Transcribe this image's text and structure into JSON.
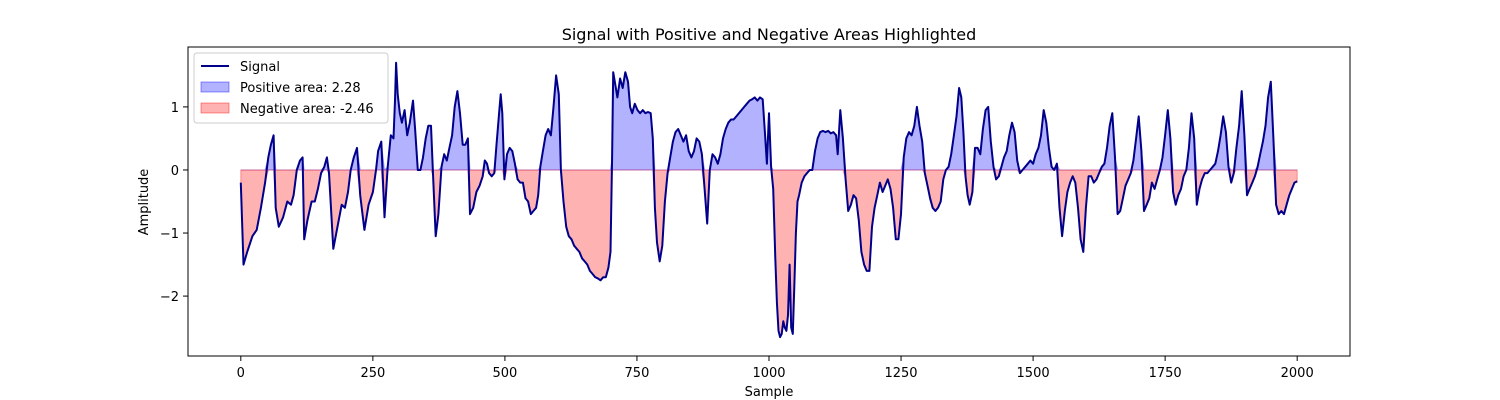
{
  "chart_data": {
    "type": "area",
    "title": "Signal with Positive and Negative Areas Highlighted",
    "xlabel": "Sample",
    "ylabel": "Amplitude",
    "xlim": [
      -100,
      2100
    ],
    "ylim": [
      -2.95,
      1.95
    ],
    "xticks": [
      0,
      250,
      500,
      750,
      1000,
      1250,
      1500,
      1750,
      2000
    ],
    "yticks": [
      -2,
      -1,
      0,
      1
    ],
    "ytick_labels": [
      "−2",
      "−1",
      "0",
      "1"
    ],
    "grid": false,
    "legend_position": "upper-left",
    "fill_x_range": [
      0,
      2000
    ],
    "series": [
      {
        "name": "Signal",
        "color": "#00008b",
        "legend": "Signal"
      },
      {
        "name": "Positive area",
        "color": "#0000ff",
        "legend": "Positive area: 2.28",
        "value": 2.28
      },
      {
        "name": "Negative area",
        "color": "#ff0000",
        "legend": "Negative area: -2.46",
        "value": -2.46
      }
    ],
    "signal": [
      [
        0,
        -0.2
      ],
      [
        5,
        -1.5
      ],
      [
        12,
        -1.3
      ],
      [
        22,
        -1.05
      ],
      [
        30,
        -0.95
      ],
      [
        38,
        -0.6
      ],
      [
        46,
        -0.2
      ],
      [
        52,
        0.2
      ],
      [
        57,
        0.4
      ],
      [
        62,
        0.55
      ],
      [
        66,
        -0.6
      ],
      [
        72,
        -0.9
      ],
      [
        80,
        -0.75
      ],
      [
        88,
        -0.5
      ],
      [
        95,
        -0.55
      ],
      [
        100,
        -0.4
      ],
      [
        106,
        0.0
      ],
      [
        112,
        0.15
      ],
      [
        117,
        0.2
      ],
      [
        120,
        -1.1
      ],
      [
        126,
        -0.8
      ],
      [
        134,
        -0.5
      ],
      [
        140,
        -0.5
      ],
      [
        146,
        -0.3
      ],
      [
        152,
        -0.05
      ],
      [
        158,
        0.05
      ],
      [
        163,
        0.2
      ],
      [
        167,
        -0.05
      ],
      [
        175,
        -1.25
      ],
      [
        183,
        -0.9
      ],
      [
        191,
        -0.55
      ],
      [
        197,
        -0.6
      ],
      [
        203,
        -0.35
      ],
      [
        208,
        0.0
      ],
      [
        214,
        0.2
      ],
      [
        220,
        0.35
      ],
      [
        226,
        -0.4
      ],
      [
        234,
        -0.95
      ],
      [
        242,
        -0.55
      ],
      [
        250,
        -0.35
      ],
      [
        256,
        0.0
      ],
      [
        260,
        0.3
      ],
      [
        266,
        0.45
      ],
      [
        272,
        -0.75
      ],
      [
        278,
        0.05
      ],
      [
        284,
        0.55
      ],
      [
        289,
        0.5
      ],
      [
        292,
        1.1
      ],
      [
        294,
        1.7
      ],
      [
        297,
        1.2
      ],
      [
        301,
        0.9
      ],
      [
        305,
        0.75
      ],
      [
        310,
        0.95
      ],
      [
        315,
        0.55
      ],
      [
        320,
        0.75
      ],
      [
        326,
        1.1
      ],
      [
        330,
        0.65
      ],
      [
        335,
        0.0
      ],
      [
        340,
        0.0
      ],
      [
        345,
        0.2
      ],
      [
        350,
        0.5
      ],
      [
        355,
        0.7
      ],
      [
        360,
        0.7
      ],
      [
        364,
        -0.1
      ],
      [
        369,
        -1.05
      ],
      [
        374,
        -0.7
      ],
      [
        380,
        0.05
      ],
      [
        385,
        0.25
      ],
      [
        390,
        0.15
      ],
      [
        395,
        0.35
      ],
      [
        400,
        0.55
      ],
      [
        405,
        1.0
      ],
      [
        410,
        1.25
      ],
      [
        415,
        0.9
      ],
      [
        420,
        0.4
      ],
      [
        425,
        0.4
      ],
      [
        430,
        0.5
      ],
      [
        434,
        -0.7
      ],
      [
        440,
        -0.6
      ],
      [
        446,
        -0.35
      ],
      [
        452,
        -0.25
      ],
      [
        458,
        -0.1
      ],
      [
        462,
        0.15
      ],
      [
        466,
        0.1
      ],
      [
        470,
        -0.05
      ],
      [
        475,
        -0.1
      ],
      [
        480,
        -0.05
      ],
      [
        484,
        0.4
      ],
      [
        489,
        0.9
      ],
      [
        492,
        1.2
      ],
      [
        495,
        0.9
      ],
      [
        499,
        -0.15
      ],
      [
        504,
        0.25
      ],
      [
        509,
        0.35
      ],
      [
        514,
        0.3
      ],
      [
        519,
        0.1
      ],
      [
        524,
        -0.15
      ],
      [
        529,
        -0.2
      ],
      [
        534,
        -0.2
      ],
      [
        539,
        -0.45
      ],
      [
        544,
        -0.5
      ],
      [
        549,
        -0.7
      ],
      [
        554,
        -0.65
      ],
      [
        559,
        -0.6
      ],
      [
        563,
        -0.4
      ],
      [
        567,
        0.05
      ],
      [
        572,
        0.3
      ],
      [
        577,
        0.55
      ],
      [
        582,
        0.65
      ],
      [
        587,
        0.55
      ],
      [
        592,
        1.0
      ],
      [
        597,
        1.5
      ],
      [
        602,
        1.2
      ],
      [
        606,
        0.0
      ],
      [
        611,
        -0.5
      ],
      [
        616,
        -0.9
      ],
      [
        621,
        -1.05
      ],
      [
        626,
        -1.1
      ],
      [
        631,
        -1.2
      ],
      [
        636,
        -1.25
      ],
      [
        641,
        -1.3
      ],
      [
        646,
        -1.4
      ],
      [
        651,
        -1.45
      ],
      [
        656,
        -1.5
      ],
      [
        661,
        -1.6
      ],
      [
        666,
        -1.65
      ],
      [
        671,
        -1.7
      ],
      [
        676,
        -1.72
      ],
      [
        681,
        -1.75
      ],
      [
        686,
        -1.7
      ],
      [
        691,
        -1.7
      ],
      [
        696,
        -1.55
      ],
      [
        700,
        -1.3
      ],
      [
        703,
        0.2
      ],
      [
        705,
        1.55
      ],
      [
        708,
        1.4
      ],
      [
        713,
        1.15
      ],
      [
        718,
        1.45
      ],
      [
        723,
        1.3
      ],
      [
        728,
        1.55
      ],
      [
        733,
        1.4
      ],
      [
        737,
        1.0
      ],
      [
        741,
        0.9
      ],
      [
        746,
        1.05
      ],
      [
        751,
        0.95
      ],
      [
        756,
        0.9
      ],
      [
        761,
        0.95
      ],
      [
        766,
        0.9
      ],
      [
        771,
        0.92
      ],
      [
        776,
        0.9
      ],
      [
        780,
        0.5
      ],
      [
        784,
        -0.6
      ],
      [
        788,
        -1.15
      ],
      [
        793,
        -1.45
      ],
      [
        798,
        -1.2
      ],
      [
        803,
        -0.5
      ],
      [
        808,
        -0.05
      ],
      [
        813,
        0.2
      ],
      [
        818,
        0.45
      ],
      [
        823,
        0.6
      ],
      [
        828,
        0.65
      ],
      [
        833,
        0.55
      ],
      [
        838,
        0.45
      ],
      [
        843,
        0.55
      ],
      [
        848,
        0.3
      ],
      [
        853,
        0.2
      ],
      [
        858,
        0.3
      ],
      [
        863,
        0.5
      ],
      [
        868,
        0.45
      ],
      [
        873,
        0.25
      ],
      [
        878,
        -0.3
      ],
      [
        883,
        -0.85
      ],
      [
        888,
        0.0
      ],
      [
        893,
        0.25
      ],
      [
        898,
        0.2
      ],
      [
        903,
        0.1
      ],
      [
        908,
        0.25
      ],
      [
        913,
        0.5
      ],
      [
        918,
        0.65
      ],
      [
        923,
        0.75
      ],
      [
        928,
        0.8
      ],
      [
        933,
        0.8
      ],
      [
        938,
        0.85
      ],
      [
        943,
        0.9
      ],
      [
        948,
        0.95
      ],
      [
        953,
        1.0
      ],
      [
        958,
        1.05
      ],
      [
        963,
        1.1
      ],
      [
        968,
        1.12
      ],
      [
        973,
        1.15
      ],
      [
        978,
        1.1
      ],
      [
        983,
        1.15
      ],
      [
        988,
        1.12
      ],
      [
        993,
        0.5
      ],
      [
        996,
        0.1
      ],
      [
        1000,
        0.9
      ],
      [
        1004,
        0.05
      ],
      [
        1008,
        -0.3
      ],
      [
        1012,
        -1.4
      ],
      [
        1015,
        -2.1
      ],
      [
        1018,
        -2.55
      ],
      [
        1021,
        -2.65
      ],
      [
        1024,
        -2.6
      ],
      [
        1027,
        -2.4
      ],
      [
        1030,
        -2.5
      ],
      [
        1033,
        -2.55
      ],
      [
        1036,
        -2.3
      ],
      [
        1039,
        -1.5
      ],
      [
        1042,
        -2.5
      ],
      [
        1045,
        -2.6
      ],
      [
        1048,
        -1.8
      ],
      [
        1051,
        -1.0
      ],
      [
        1054,
        -0.5
      ],
      [
        1057,
        -0.4
      ],
      [
        1062,
        -0.2
      ],
      [
        1067,
        -0.1
      ],
      [
        1072,
        -0.05
      ],
      [
        1077,
        0.0
      ],
      [
        1082,
        0.0
      ],
      [
        1087,
        0.3
      ],
      [
        1092,
        0.5
      ],
      [
        1097,
        0.6
      ],
      [
        1102,
        0.62
      ],
      [
        1107,
        0.6
      ],
      [
        1112,
        0.62
      ],
      [
        1117,
        0.58
      ],
      [
        1122,
        0.6
      ],
      [
        1127,
        0.55
      ],
      [
        1130,
        0.25
      ],
      [
        1135,
        0.95
      ],
      [
        1140,
        0.5
      ],
      [
        1145,
        -0.15
      ],
      [
        1150,
        -0.65
      ],
      [
        1155,
        -0.55
      ],
      [
        1160,
        -0.4
      ],
      [
        1165,
        -0.45
      ],
      [
        1170,
        -0.8
      ],
      [
        1175,
        -1.3
      ],
      [
        1180,
        -1.5
      ],
      [
        1185,
        -1.6
      ],
      [
        1190,
        -1.6
      ],
      [
        1195,
        -0.9
      ],
      [
        1200,
        -0.6
      ],
      [
        1205,
        -0.4
      ],
      [
        1210,
        -0.2
      ],
      [
        1215,
        -0.35
      ],
      [
        1220,
        -0.25
      ],
      [
        1225,
        -0.15
      ],
      [
        1230,
        -0.3
      ],
      [
        1235,
        -0.6
      ],
      [
        1240,
        -1.1
      ],
      [
        1245,
        -1.1
      ],
      [
        1250,
        -0.7
      ],
      [
        1255,
        0.2
      ],
      [
        1260,
        0.5
      ],
      [
        1265,
        0.6
      ],
      [
        1270,
        0.55
      ],
      [
        1275,
        0.7
      ],
      [
        1280,
        1.0
      ],
      [
        1285,
        0.7
      ],
      [
        1290,
        0.45
      ],
      [
        1295,
        -0.05
      ],
      [
        1300,
        -0.25
      ],
      [
        1305,
        -0.45
      ],
      [
        1310,
        -0.6
      ],
      [
        1315,
        -0.65
      ],
      [
        1320,
        -0.6
      ],
      [
        1325,
        -0.5
      ],
      [
        1330,
        -0.15
      ],
      [
        1335,
        0.0
      ],
      [
        1340,
        0.05
      ],
      [
        1345,
        0.25
      ],
      [
        1350,
        0.55
      ],
      [
        1355,
        0.85
      ],
      [
        1360,
        1.3
      ],
      [
        1364,
        1.15
      ],
      [
        1368,
        0.6
      ],
      [
        1372,
        -0.1
      ],
      [
        1376,
        -0.4
      ],
      [
        1380,
        -0.55
      ],
      [
        1385,
        -0.35
      ],
      [
        1390,
        0.35
      ],
      [
        1395,
        0.35
      ],
      [
        1400,
        0.25
      ],
      [
        1405,
        0.65
      ],
      [
        1410,
        0.95
      ],
      [
        1415,
        1.0
      ],
      [
        1420,
        0.45
      ],
      [
        1425,
        0.05
      ],
      [
        1430,
        -0.15
      ],
      [
        1435,
        -0.1
      ],
      [
        1440,
        0.05
      ],
      [
        1445,
        0.2
      ],
      [
        1450,
        0.3
      ],
      [
        1455,
        0.55
      ],
      [
        1460,
        0.75
      ],
      [
        1465,
        0.6
      ],
      [
        1470,
        0.15
      ],
      [
        1475,
        -0.05
      ],
      [
        1480,
        0.0
      ],
      [
        1485,
        0.05
      ],
      [
        1490,
        0.1
      ],
      [
        1495,
        0.15
      ],
      [
        1500,
        0.1
      ],
      [
        1505,
        0.25
      ],
      [
        1510,
        0.35
      ],
      [
        1515,
        0.55
      ],
      [
        1520,
        0.95
      ],
      [
        1525,
        0.75
      ],
      [
        1530,
        0.35
      ],
      [
        1535,
        0.05
      ],
      [
        1540,
        0.0
      ],
      [
        1545,
        0.1
      ],
      [
        1550,
        -0.6
      ],
      [
        1555,
        -1.05
      ],
      [
        1560,
        -0.65
      ],
      [
        1565,
        -0.35
      ],
      [
        1570,
        -0.2
      ],
      [
        1575,
        -0.1
      ],
      [
        1580,
        -0.2
      ],
      [
        1585,
        -0.6
      ],
      [
        1590,
        -1.1
      ],
      [
        1595,
        -1.3
      ],
      [
        1600,
        -0.6
      ],
      [
        1605,
        -0.1
      ],
      [
        1610,
        -0.1
      ],
      [
        1615,
        -0.2
      ],
      [
        1620,
        -0.15
      ],
      [
        1625,
        -0.05
      ],
      [
        1630,
        0.05
      ],
      [
        1635,
        0.1
      ],
      [
        1640,
        0.35
      ],
      [
        1645,
        0.7
      ],
      [
        1650,
        0.9
      ],
      [
        1655,
        0.2
      ],
      [
        1660,
        -0.7
      ],
      [
        1665,
        -0.65
      ],
      [
        1670,
        -0.45
      ],
      [
        1675,
        -0.25
      ],
      [
        1680,
        -0.15
      ],
      [
        1685,
        -0.05
      ],
      [
        1690,
        0.15
      ],
      [
        1695,
        0.5
      ],
      [
        1700,
        0.85
      ],
      [
        1705,
        0.3
      ],
      [
        1710,
        -0.65
      ],
      [
        1715,
        -0.55
      ],
      [
        1720,
        -0.45
      ],
      [
        1725,
        -0.2
      ],
      [
        1730,
        -0.3
      ],
      [
        1735,
        -0.15
      ],
      [
        1740,
        0.0
      ],
      [
        1745,
        0.2
      ],
      [
        1750,
        0.55
      ],
      [
        1755,
        0.95
      ],
      [
        1760,
        0.5
      ],
      [
        1765,
        -0.35
      ],
      [
        1770,
        -0.55
      ],
      [
        1775,
        -0.4
      ],
      [
        1780,
        -0.3
      ],
      [
        1785,
        -0.1
      ],
      [
        1790,
        0.0
      ],
      [
        1795,
        0.35
      ],
      [
        1800,
        0.9
      ],
      [
        1805,
        0.5
      ],
      [
        1810,
        -0.55
      ],
      [
        1815,
        -0.3
      ],
      [
        1820,
        -0.15
      ],
      [
        1825,
        -0.05
      ],
      [
        1830,
        -0.05
      ],
      [
        1835,
        0.0
      ],
      [
        1840,
        0.05
      ],
      [
        1845,
        0.1
      ],
      [
        1850,
        0.3
      ],
      [
        1855,
        0.55
      ],
      [
        1860,
        0.85
      ],
      [
        1865,
        0.6
      ],
      [
        1870,
        0.05
      ],
      [
        1875,
        -0.2
      ],
      [
        1880,
        -0.05
      ],
      [
        1885,
        0.35
      ],
      [
        1890,
        0.7
      ],
      [
        1895,
        1.25
      ],
      [
        1900,
        0.55
      ],
      [
        1905,
        -0.4
      ],
      [
        1910,
        -0.3
      ],
      [
        1915,
        -0.2
      ],
      [
        1920,
        -0.1
      ],
      [
        1925,
        0.05
      ],
      [
        1930,
        0.25
      ],
      [
        1935,
        0.45
      ],
      [
        1940,
        0.7
      ],
      [
        1945,
        1.15
      ],
      [
        1950,
        1.4
      ],
      [
        1955,
        0.5
      ],
      [
        1960,
        -0.55
      ],
      [
        1965,
        -0.7
      ],
      [
        1970,
        -0.65
      ],
      [
        1975,
        -0.7
      ],
      [
        1980,
        -0.55
      ],
      [
        1985,
        -0.4
      ],
      [
        1990,
        -0.3
      ],
      [
        1995,
        -0.2
      ],
      [
        2000,
        -0.18
      ]
    ]
  }
}
